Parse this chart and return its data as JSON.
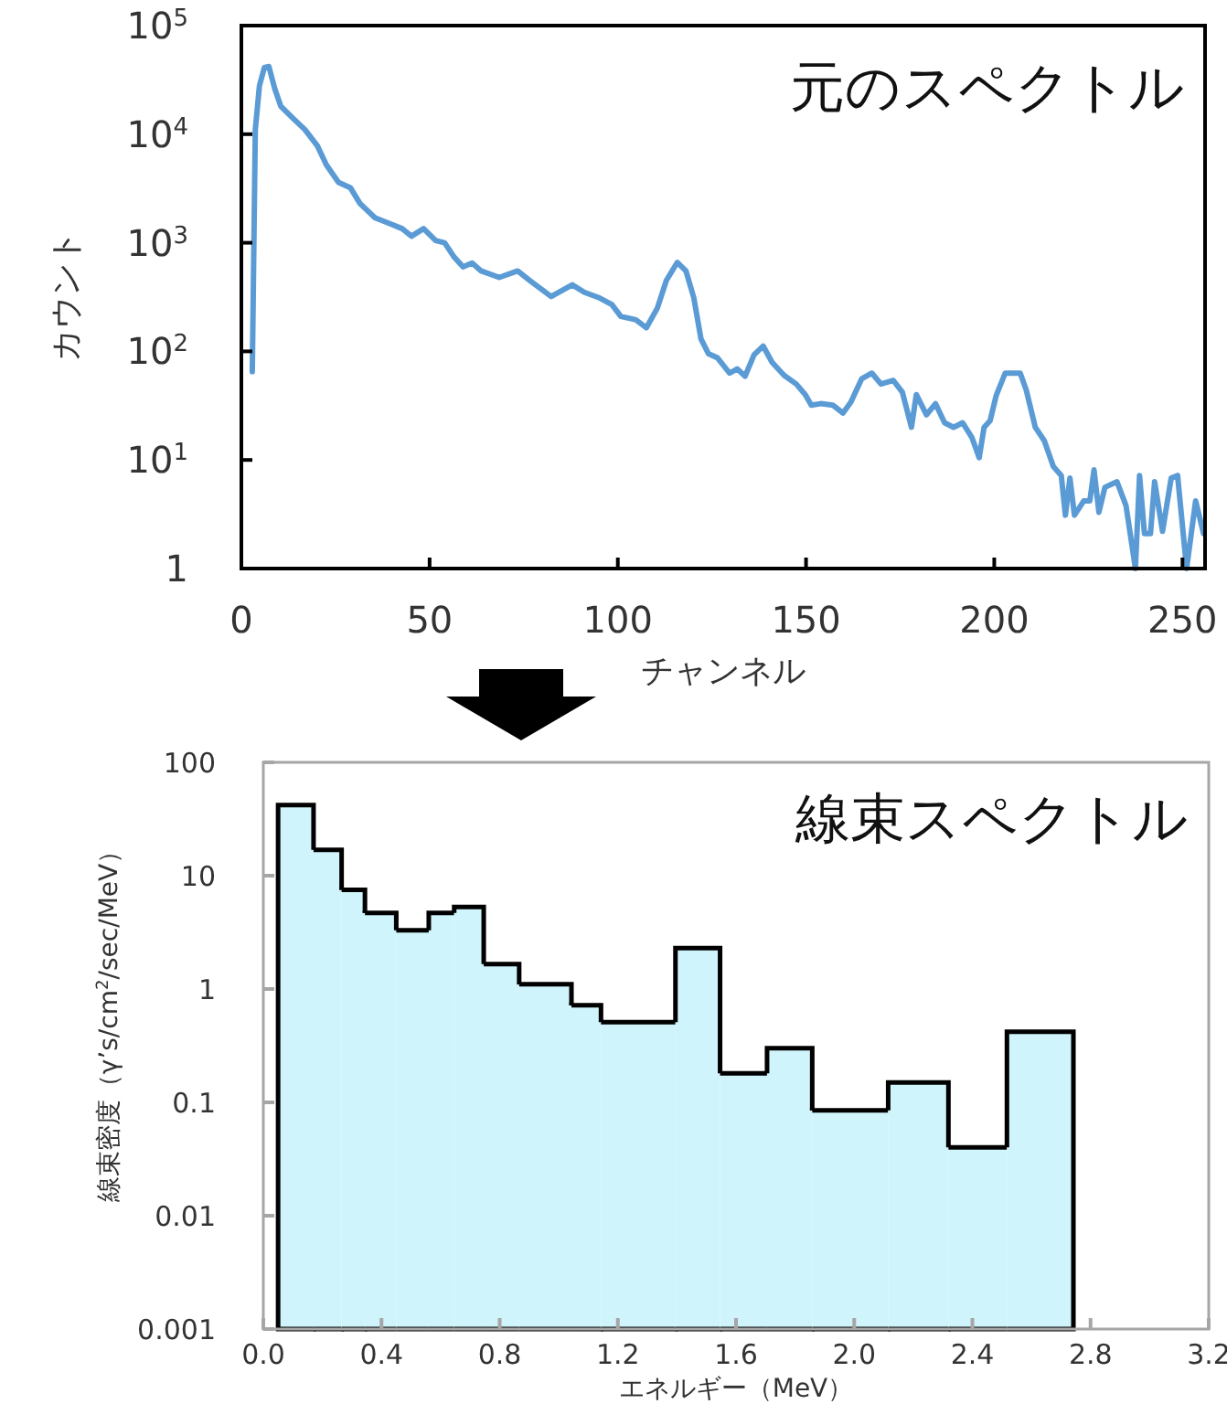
{
  "chart_data": [
    {
      "type": "line",
      "title": "元のスペクトル",
      "xlabel": "チャンネル",
      "ylabel": "カウント",
      "log": "y",
      "grid": false,
      "xlim": [
        0,
        256
      ],
      "xticks": [
        0,
        50,
        100,
        150,
        200,
        250
      ],
      "ylim": [
        1,
        100000
      ],
      "yticks": [
        1,
        {
          "value": 10,
          "label": "10$^{1}$"
        },
        {
          "value": 100,
          "label": "10$^{2}$"
        },
        {
          "value": 1000,
          "label": "10$^{3}$"
        },
        {
          "value": 10000,
          "label": "10$^{4}$"
        },
        {
          "value": 100000,
          "label": "10$^{5}$"
        }
      ],
      "series": [
        {
          "color": "#5b9bd5",
          "x": [
            2.9,
            3.7,
            4.8,
            6.1,
            7.3,
            8.9,
            10.5,
            13.7,
            16.9,
            20.2,
            22.6,
            25.8,
            29,
            31.5,
            35.5,
            39.5,
            42.7,
            45.2,
            48.4,
            51.6,
            54,
            56.5,
            58.9,
            61.3,
            63.7,
            68.5,
            73.4,
            76.6,
            82.3,
            87.9,
            91.1,
            95.2,
            98.4,
            100.8,
            104.8,
            107.6,
            110.5,
            112.9,
            115.8,
            118.1,
            120.2,
            122.1,
            124.1,
            126.5,
            129.7,
            131.7,
            133.8,
            136.2,
            138.6,
            141,
            144.2,
            147.4,
            149.8,
            151.4,
            153.9,
            157.1,
            159.8,
            161.9,
            164.8,
            167.5,
            169.9,
            173.2,
            175.6,
            178,
            179.3,
            182,
            184.4,
            186.8,
            189.2,
            191.6,
            194.1,
            196,
            197.3,
            198.9,
            200.5,
            202.9,
            206.9,
            208.5,
            210.9,
            213.3,
            215.7,
            217.8,
            218.9,
            220.1,
            221.3,
            223.8,
            225.4,
            226.5,
            227.8,
            229.4,
            232.6,
            235,
            237.5,
            238.6,
            239.9,
            241.5,
            242.6,
            244.7,
            247,
            248.7,
            251.1,
            253.5,
            255.6
          ],
          "values": [
            65,
            11000,
            28000,
            41000,
            42000,
            26000,
            18000,
            14000,
            11000,
            7800,
            5200,
            3600,
            3200,
            2300,
            1700,
            1500,
            1350,
            1150,
            1350,
            1050,
            1000,
            740,
            600,
            650,
            550,
            480,
            550,
            450,
            320,
            410,
            350,
            310,
            270,
            210,
            195,
            165,
            250,
            450,
            660,
            550,
            310,
            130,
            95,
            87,
            63,
            69,
            59,
            93,
            112,
            79,
            60,
            50,
            40,
            32,
            33,
            32,
            27,
            34,
            56,
            63,
            50,
            54,
            42,
            20,
            40,
            26,
            33,
            22,
            20,
            22,
            16,
            10.5,
            20,
            23,
            39,
            63,
            63,
            44,
            20,
            15,
            8.7,
            7.2,
            3.1,
            6.8,
            3.1,
            4.2,
            4.2,
            8.1,
            3.3,
            5.6,
            6.3,
            3.8,
            1,
            7.2,
            2.1,
            2.1,
            6.3,
            2.2,
            6.8,
            7.2,
            1,
            4.2,
            2.1
          ]
        }
      ]
    },
    {
      "type": "histogram",
      "title": "線束スペクトル",
      "xlabel": "エネルギー（MeV）",
      "ylabel": "線束密度（γ’s/cm$^{2}$/sec/MeV）",
      "log": "y",
      "grid": false,
      "color": "#cff4fc",
      "xlim": [
        0,
        3.2
      ],
      "xticks": [
        {
          "value": 0,
          "label": "0.0"
        },
        0.4,
        0.8,
        1.2,
        1.6,
        {
          "value": 2,
          "label": "2.0"
        },
        2.4,
        2.8,
        3.2
      ],
      "ylim": [
        0.001,
        100
      ],
      "yticks": [
        0.001,
        0.01,
        0.1,
        1,
        10,
        100
      ],
      "bins": [
        0.05,
        0.17,
        0.265,
        0.344,
        0.45,
        0.56,
        0.646,
        0.746,
        0.866,
        1.043,
        1.143,
        1.395,
        1.546,
        1.705,
        1.858,
        2.115,
        2.319,
        2.517,
        2.742
      ],
      "values": [
        42,
        16.9,
        7.5,
        4.7,
        3.3,
        4.7,
        5.3,
        1.66,
        1.1,
        0.72,
        0.51,
        2.3,
        0.18,
        0.3,
        0.085,
        0.15,
        0.04,
        0.42
      ]
    }
  ]
}
